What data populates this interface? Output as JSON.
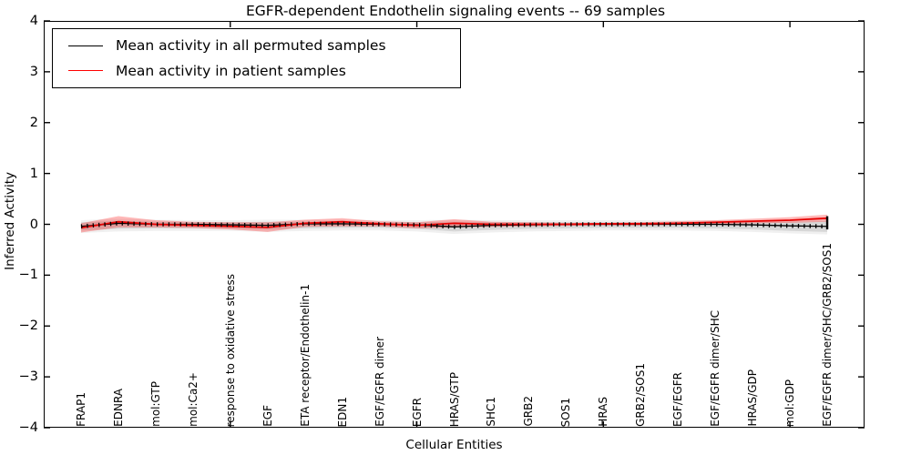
{
  "title": "EGFR-dependent Endothelin signaling events -- 69 samples",
  "legend": {
    "items": [
      {
        "label": "Mean activity in all permuted samples",
        "color": "#000000"
      },
      {
        "label": "Mean activity in patient samples",
        "color": "#ff0000"
      }
    ]
  },
  "chart_data": {
    "type": "line",
    "title": "EGFR-dependent Endothelin signaling events -- 69 samples",
    "xlabel": "Cellular Entities",
    "ylabel": "Inferred Activity",
    "ylim": [
      -4,
      4
    ],
    "yticks": [
      4,
      3,
      2,
      1,
      0,
      -1,
      -2,
      -3,
      -4
    ],
    "xlim": [
      0,
      22
    ],
    "xticks_unlabeled": [
      5,
      10,
      15,
      20
    ],
    "grid": false,
    "legend_position": "upper left",
    "categories": [
      "FRAP1",
      "EDNRA",
      "mol:GTP",
      "mol:Ca2+",
      "response to oxidative stress",
      "EGF",
      "ETA receptor/Endothelin-1",
      "EDN1",
      "EGF/EGFR dimer",
      "EGFR",
      "HRAS/GTP",
      "SHC1",
      "GRB2",
      "SOS1",
      "HRAS",
      "GRB2/SOS1",
      "EGF/EGFR",
      "EGF/EGFR dimer/SHC",
      "HRAS/GDP",
      "mol:GDP",
      "EGF/EGFR dimer/SHC/GRB2/SOS1"
    ],
    "series": [
      {
        "name": "Mean activity in all permuted samples",
        "color": "#000000",
        "width": 1.3,
        "values": [
          -0.04,
          0.02,
          0.0,
          0.0,
          -0.01,
          -0.02,
          0.01,
          0.01,
          0.0,
          -0.01,
          -0.05,
          -0.02,
          -0.01,
          0.0,
          0.0,
          0.0,
          0.0,
          0.0,
          -0.01,
          -0.03,
          -0.04
        ]
      },
      {
        "name": "Mean activity in patient samples",
        "color": "#e60000",
        "width": 1.8,
        "values": [
          -0.07,
          0.05,
          0.0,
          -0.02,
          -0.04,
          -0.06,
          0.02,
          0.05,
          0.01,
          -0.02,
          0.02,
          0.0,
          0.0,
          0.0,
          0.01,
          0.01,
          0.02,
          0.04,
          0.06,
          0.08,
          0.12
        ]
      }
    ],
    "bands": [
      {
        "name": "permuted-range-outer",
        "color": "rgba(0,0,0,0.06)",
        "upper": [
          0.08,
          0.11,
          0.09,
          0.08,
          0.08,
          0.09,
          0.09,
          0.09,
          0.08,
          0.08,
          0.09,
          0.08,
          0.08,
          0.08,
          0.08,
          0.08,
          0.08,
          0.08,
          0.08,
          0.09,
          0.1
        ],
        "lower": [
          -0.17,
          -0.14,
          -0.13,
          -0.13,
          -0.13,
          -0.15,
          -0.13,
          -0.12,
          -0.12,
          -0.14,
          -0.19,
          -0.16,
          -0.14,
          -0.13,
          -0.12,
          -0.12,
          -0.12,
          -0.13,
          -0.15,
          -0.18,
          -0.2
        ]
      },
      {
        "name": "permuted-range",
        "color": "rgba(0,0,0,0.10)",
        "upper": [
          0.04,
          0.07,
          0.05,
          0.04,
          0.04,
          0.05,
          0.05,
          0.05,
          0.04,
          0.04,
          0.05,
          0.04,
          0.04,
          0.04,
          0.04,
          0.04,
          0.04,
          0.04,
          0.04,
          0.05,
          0.06
        ],
        "lower": [
          -0.12,
          -0.09,
          -0.08,
          -0.08,
          -0.08,
          -0.1,
          -0.08,
          -0.07,
          -0.07,
          -0.09,
          -0.14,
          -0.11,
          -0.09,
          -0.08,
          -0.07,
          -0.07,
          -0.07,
          -0.08,
          -0.1,
          -0.13,
          -0.15
        ]
      },
      {
        "name": "patient-range",
        "color": "rgba(255,0,0,0.28)",
        "upper": [
          0.02,
          0.16,
          0.08,
          0.05,
          0.04,
          0.04,
          0.09,
          0.12,
          0.06,
          0.04,
          0.1,
          0.05,
          0.04,
          0.03,
          0.03,
          0.04,
          0.06,
          0.08,
          0.11,
          0.14,
          0.19
        ],
        "lower": [
          -0.16,
          -0.06,
          -0.06,
          -0.07,
          -0.1,
          -0.15,
          -0.05,
          -0.04,
          -0.04,
          -0.08,
          -0.06,
          -0.05,
          -0.04,
          -0.03,
          -0.02,
          -0.02,
          -0.01,
          0.0,
          0.02,
          0.03,
          0.05
        ]
      }
    ],
    "end_marker": {
      "x_index": 20,
      "top": 0.16,
      "bottom": -0.1
    }
  }
}
